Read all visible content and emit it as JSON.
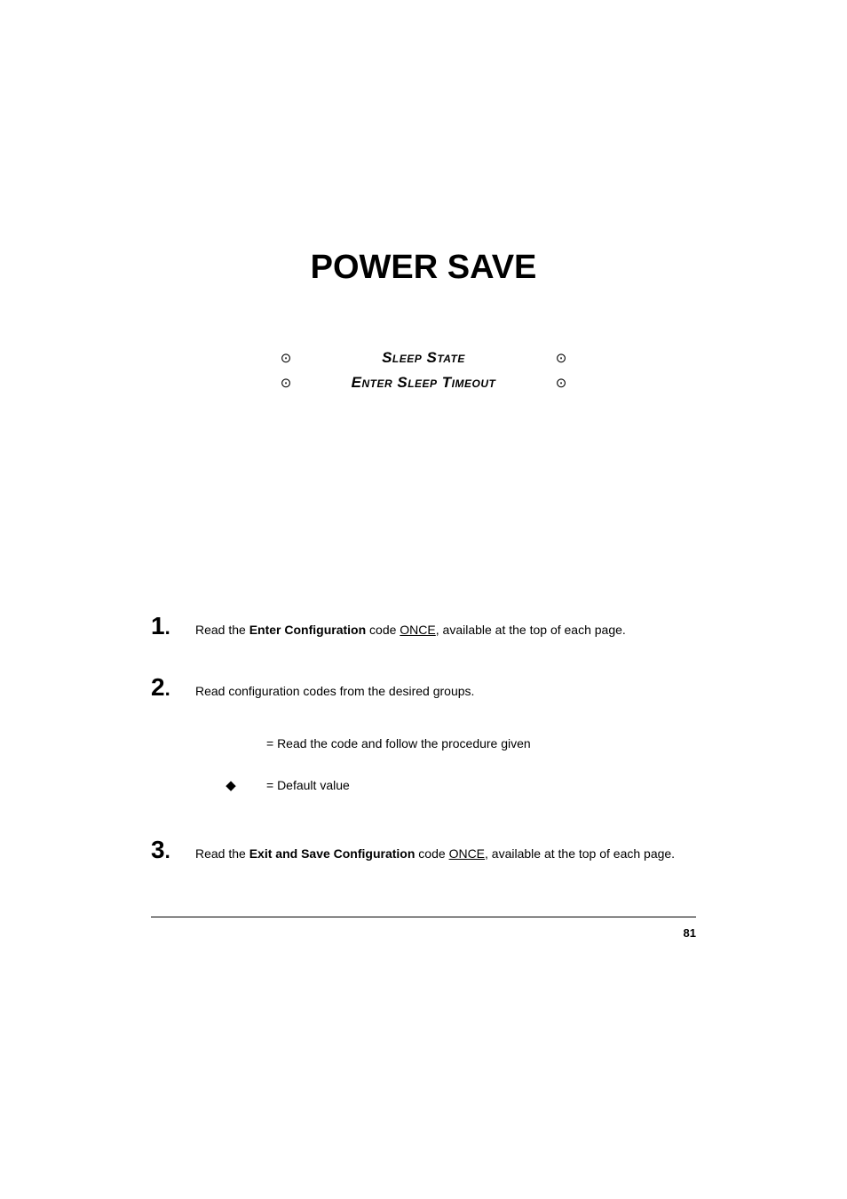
{
  "title": "POWER SAVE",
  "subtitles": [
    {
      "bullet_left": "⊙",
      "label": "Sleep State",
      "bullet_right": "⊙"
    },
    {
      "bullet_left": "⊙",
      "label": "Enter Sleep Timeout",
      "bullet_right": "⊙"
    }
  ],
  "steps": {
    "s1": {
      "num": "1",
      "prefix": "Read the ",
      "bold": "Enter Configuration",
      "mid": " code ",
      "underline": "ONCE",
      "suffix": ", available at the top of each page."
    },
    "s2": {
      "num": "2",
      "text": "Read configuration codes from the desired groups."
    },
    "legend": {
      "row1": {
        "symbol": "",
        "text": "= Read the code and follow the procedure given"
      },
      "row2": {
        "symbol": "◆",
        "text": "= Default value"
      }
    },
    "s3": {
      "num": "3",
      "prefix": "Read the ",
      "bold": "Exit and Save Configuration",
      "mid": " code ",
      "underline": "ONCE",
      "suffix": ", available at the top of each page."
    }
  },
  "page_number": "81",
  "colors": {
    "text": "#000000",
    "background": "#ffffff",
    "rule": "#000000"
  },
  "fonts": {
    "title_size": 38,
    "subtitle_size": 17,
    "body_size": 14,
    "step_num_size": 28,
    "page_num_size": 13
  }
}
